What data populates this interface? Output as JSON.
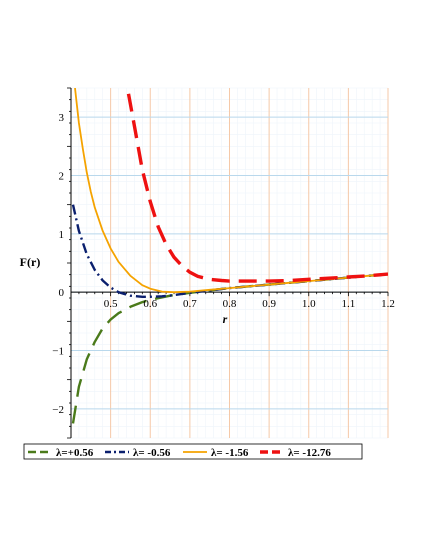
{
  "chart_data": {
    "type": "line",
    "title": "",
    "xlabel": "r",
    "ylabel": "F(r)",
    "xlim": [
      0.4,
      1.2
    ],
    "ylim": [
      -2.5,
      3.5
    ],
    "grid": true,
    "legend_position": "bottom",
    "x_ticks": [
      "0.5",
      "0.6",
      "0.7",
      "0.8",
      "0.9",
      "1.0",
      "1.1",
      "1.2"
    ],
    "y_ticks": [
      "-2",
      "-1",
      "0",
      "1",
      "2",
      "3"
    ],
    "colors": {
      "grid_vertical": "#f5c9a8",
      "grid_horizontal": "#b9d8ec",
      "grid_minor": "#eef4fa"
    },
    "series": [
      {
        "name": "λ=+0.56",
        "color": "#4a7a1a",
        "dash": "long-dash",
        "x": [
          0.405,
          0.42,
          0.44,
          0.46,
          0.48,
          0.5,
          0.52,
          0.55,
          0.58,
          0.6,
          0.65,
          0.7,
          0.75,
          0.8,
          0.85,
          0.9,
          0.95,
          1.0,
          1.05,
          1.1,
          1.15,
          1.2
        ],
        "y": [
          -2.25,
          -1.62,
          -1.15,
          -0.85,
          -0.62,
          -0.47,
          -0.36,
          -0.25,
          -0.17,
          -0.13,
          -0.06,
          -0.01,
          0.03,
          0.07,
          0.1,
          0.13,
          0.16,
          0.19,
          0.22,
          0.25,
          0.28,
          0.31
        ]
      },
      {
        "name": "λ= -0.56",
        "color": "#0a1f6e",
        "dash": "dash-dot",
        "x": [
          0.405,
          0.42,
          0.44,
          0.46,
          0.48,
          0.5,
          0.52,
          0.55,
          0.58,
          0.6,
          0.63,
          0.66,
          0.7,
          0.75,
          0.8,
          0.85,
          0.9,
          0.95,
          1.0,
          1.05,
          1.1,
          1.15,
          1.2
        ],
        "y": [
          1.5,
          1.05,
          0.65,
          0.38,
          0.2,
          0.08,
          0.0,
          -0.06,
          -0.08,
          -0.08,
          -0.07,
          -0.05,
          -0.01,
          0.03,
          0.07,
          0.1,
          0.13,
          0.16,
          0.19,
          0.22,
          0.25,
          0.28,
          0.31
        ]
      },
      {
        "name": "λ= -1.56",
        "color": "#f5a300",
        "dash": "solid",
        "x": [
          0.41,
          0.42,
          0.43,
          0.44,
          0.45,
          0.46,
          0.48,
          0.5,
          0.52,
          0.55,
          0.58,
          0.6,
          0.63,
          0.66,
          0.7,
          0.75,
          0.8,
          0.85,
          0.9,
          0.95,
          1.0,
          1.05,
          1.1,
          1.15,
          1.2
        ],
        "y": [
          3.5,
          2.9,
          2.45,
          2.05,
          1.72,
          1.45,
          1.05,
          0.75,
          0.52,
          0.28,
          0.12,
          0.06,
          0.01,
          0.0,
          0.01,
          0.04,
          0.07,
          0.1,
          0.13,
          0.16,
          0.19,
          0.22,
          0.25,
          0.28,
          0.31
        ]
      },
      {
        "name": "λ= -12.76",
        "color": "#ee1111",
        "dash": "long-dash",
        "x": [
          0.545,
          0.56,
          0.58,
          0.6,
          0.62,
          0.64,
          0.66,
          0.68,
          0.7,
          0.72,
          0.75,
          0.78,
          0.8,
          0.82,
          0.85,
          0.9,
          0.95,
          1.0,
          1.05,
          1.1,
          1.15,
          1.2
        ],
        "y": [
          3.4,
          2.85,
          2.1,
          1.55,
          1.12,
          0.82,
          0.6,
          0.45,
          0.34,
          0.27,
          0.22,
          0.2,
          0.19,
          0.19,
          0.19,
          0.19,
          0.2,
          0.22,
          0.24,
          0.26,
          0.28,
          0.31
        ]
      }
    ]
  }
}
